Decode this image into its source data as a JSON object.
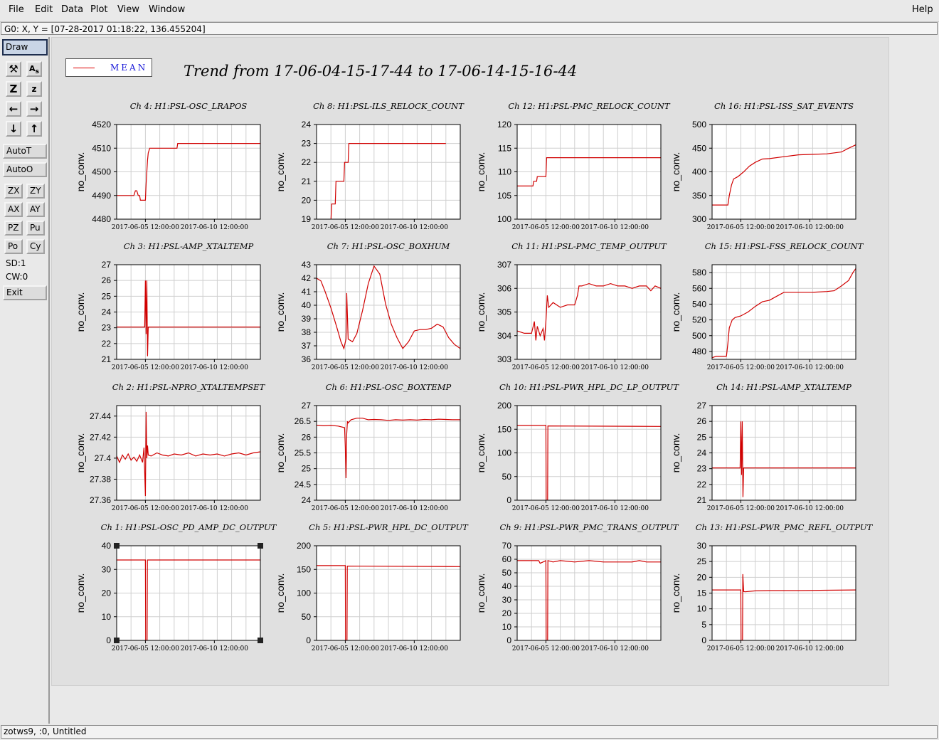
{
  "menu": {
    "file": "File",
    "edit": "Edit",
    "data": "Data",
    "plot": "Plot",
    "view": "View",
    "window": "Window",
    "help": "Help"
  },
  "coord_readout": "G0: X, Y = [07-28-2017 01:18:22, 136.455204]",
  "toolbar": {
    "draw": "Draw",
    "autot": "AutoT",
    "autoo": "AutoO",
    "zx": "ZX",
    "zy": "ZY",
    "ax": "AX",
    "ay": "AY",
    "pz": "PZ",
    "pu": "Pu",
    "po": "Po",
    "cy": "Cy",
    "sd": "SD:1",
    "cw": "CW:0",
    "exit": "Exit",
    "icons": [
      "wrench-icon",
      "text-size-icon",
      "zoom-z-icon",
      "z-icon",
      "arrow-left-icon",
      "arrow-right-icon",
      "arrow-down-icon",
      "arrow-up-icon"
    ]
  },
  "legend": {
    "label": "MEAN",
    "color": "#d00000"
  },
  "main_title": "Trend from 17-06-04-15-17-44 to 17-06-14-15-16-44",
  "status": "zotws9, :0, Untitled",
  "chart_data": [
    {
      "id": "c4",
      "type": "line",
      "title": "Ch 4: H1:PSL-OSC_LRAPOS",
      "ylabel": "no_conv.",
      "ylim": [
        4480,
        4520
      ],
      "yticks": [
        "4480",
        "4490",
        "4500",
        "4510",
        "4520"
      ],
      "xlim": [
        0,
        10
      ],
      "xticks": [
        {
          "v": 2,
          "l": "2017-06-05 12:00:00"
        },
        {
          "v": 6.8,
          "l": "2017-06-10 12:00:00"
        }
      ],
      "x": [
        0,
        1.2,
        1.3,
        1.4,
        1.5,
        1.6,
        1.65,
        2.0,
        2.05,
        2.1,
        2.15,
        2.2,
        2.3,
        4.2,
        4.25,
        10
      ],
      "y": [
        4490,
        4490,
        4492,
        4492,
        4490,
        4490,
        4488,
        4488,
        4495,
        4500,
        4505,
        4508,
        4510,
        4510,
        4512,
        4512
      ]
    },
    {
      "id": "c8",
      "type": "line",
      "title": "Ch 8: H1:PSL-ILS_RELOCK_COUNT",
      "ylabel": "no_conv.",
      "ylim": [
        19,
        24
      ],
      "yticks": [
        "19",
        "20",
        "21",
        "22",
        "23",
        "24"
      ],
      "xlim": [
        0,
        10
      ],
      "xticks": [
        {
          "v": 2,
          "l": "2017-06-05 12:00:00"
        },
        {
          "v": 6.8,
          "l": "2017-06-10 12:00:00"
        }
      ],
      "x": [
        1.0,
        1.05,
        1.3,
        1.35,
        1.9,
        1.95,
        2.2,
        2.25,
        9.0
      ],
      "y": [
        18.9,
        19.8,
        19.8,
        21,
        21,
        22,
        22,
        23,
        23
      ]
    },
    {
      "id": "c12",
      "type": "line",
      "title": "Ch 12: H1:PSL-PMC_RELOCK_COUNT",
      "ylabel": "no_conv.",
      "ylim": [
        100,
        120
      ],
      "yticks": [
        "100",
        "105",
        "110",
        "115",
        "120"
      ],
      "xlim": [
        0,
        10
      ],
      "xticks": [
        {
          "v": 2,
          "l": "2017-06-05 12:00:00"
        },
        {
          "v": 6.8,
          "l": "2017-06-10 12:00:00"
        }
      ],
      "x": [
        0,
        1.1,
        1.15,
        1.35,
        1.4,
        2.0,
        2.05,
        10
      ],
      "y": [
        107,
        107,
        108,
        108,
        109,
        109,
        113,
        113
      ]
    },
    {
      "id": "c16",
      "type": "line",
      "title": "Ch 16: H1:PSL-ISS_SAT_EVENTS",
      "ylabel": "no_conv.",
      "ylim": [
        300,
        500
      ],
      "yticks": [
        "300",
        "350",
        "400",
        "450",
        "500"
      ],
      "xlim": [
        0,
        10
      ],
      "xticks": [
        {
          "v": 2,
          "l": "2017-06-05 12:00:00"
        },
        {
          "v": 6.8,
          "l": "2017-06-10 12:00:00"
        }
      ],
      "x": [
        0,
        1.1,
        1.2,
        1.35,
        1.5,
        1.8,
        2.2,
        2.6,
        3.0,
        3.5,
        4.0,
        5.0,
        6.0,
        7.0,
        8.0,
        9.0,
        9.5,
        10
      ],
      "y": [
        330,
        330,
        350,
        372,
        385,
        390,
        400,
        412,
        420,
        427,
        428,
        432,
        436,
        437,
        438,
        442,
        450,
        457
      ]
    },
    {
      "id": "c3",
      "type": "line",
      "title": "Ch 3: H1:PSL-AMP_XTALTEMP",
      "ylabel": "no_conv.",
      "ylim": [
        21,
        27
      ],
      "yticks": [
        "21",
        "22",
        "23",
        "24",
        "25",
        "26",
        "27"
      ],
      "xlim": [
        0,
        10
      ],
      "xticks": [
        {
          "v": 2,
          "l": "2017-06-05 12:00:00"
        },
        {
          "v": 6.8,
          "l": "2017-06-10 12:00:00"
        }
      ],
      "x": [
        0,
        1.95,
        2.0,
        2.05,
        2.1,
        2.15,
        2.2,
        10
      ],
      "y": [
        23.05,
        23.05,
        26,
        22.6,
        26,
        21.2,
        23.05,
        23.05
      ]
    },
    {
      "id": "c7",
      "type": "line",
      "title": "Ch 7: H1:PSL-OSC_BOXHUM",
      "ylabel": "no_conv.",
      "ylim": [
        36,
        43
      ],
      "yticks": [
        "36",
        "37",
        "38",
        "39",
        "40",
        "41",
        "42",
        "43"
      ],
      "xlim": [
        0,
        10
      ],
      "xticks": [
        {
          "v": 2,
          "l": "2017-06-05 12:00:00"
        },
        {
          "v": 6.8,
          "l": "2017-06-10 12:00:00"
        }
      ],
      "x": [
        0,
        0.3,
        0.6,
        1.0,
        1.4,
        1.7,
        1.9,
        2.05,
        2.1,
        2.2,
        2.5,
        2.8,
        3.2,
        3.6,
        4.0,
        4.4,
        4.8,
        5.2,
        5.6,
        6.0,
        6.4,
        6.8,
        7.2,
        7.6,
        8.0,
        8.4,
        8.8,
        9.2,
        9.6,
        10
      ],
      "y": [
        42,
        41.8,
        41,
        39.8,
        38.4,
        37.3,
        36.8,
        37.5,
        40.9,
        37.5,
        37.3,
        37.9,
        39.6,
        41.6,
        42.9,
        42.3,
        40.1,
        38.6,
        37.6,
        36.8,
        37.3,
        38.1,
        38.2,
        38.2,
        38.3,
        38.6,
        38.4,
        37.6,
        37.1,
        36.8
      ]
    },
    {
      "id": "c11",
      "type": "line",
      "title": "Ch 11: H1:PSL-PMC_TEMP_OUTPUT",
      "ylabel": "no_conv.",
      "ylim": [
        303,
        307
      ],
      "yticks": [
        "303",
        "304",
        "305",
        "306",
        "307"
      ],
      "xlim": [
        0,
        10
      ],
      "xticks": [
        {
          "v": 2,
          "l": "2017-06-05 12:00:00"
        },
        {
          "v": 6.8,
          "l": "2017-06-10 12:00:00"
        }
      ],
      "x": [
        0,
        0.5,
        1.0,
        1.2,
        1.3,
        1.4,
        1.6,
        1.8,
        1.9,
        2.0,
        2.1,
        2.2,
        2.5,
        3.0,
        3.5,
        4.0,
        4.2,
        4.3,
        4.5,
        5.0,
        5.5,
        6.0,
        6.5,
        7.0,
        7.5,
        8.0,
        8.5,
        9.0,
        9.3,
        9.6,
        10
      ],
      "y": [
        304.2,
        304.1,
        304.1,
        304.6,
        303.8,
        304.4,
        304.0,
        304.3,
        303.8,
        304.6,
        305.7,
        305.2,
        305.4,
        305.2,
        305.3,
        305.3,
        305.7,
        306.1,
        306.1,
        306.2,
        306.1,
        306.1,
        306.2,
        306.1,
        306.1,
        306.0,
        306.1,
        306.1,
        305.9,
        306.1,
        306.0
      ]
    },
    {
      "id": "c15",
      "type": "line",
      "title": "Ch 15: H1:PSL-FSS_RELOCK_COUNT",
      "ylabel": "no_conv.",
      "ylim": [
        470,
        590
      ],
      "yticks": [
        "480",
        "500",
        "520",
        "540",
        "560",
        "580"
      ],
      "xlim": [
        0,
        10
      ],
      "xticks": [
        {
          "v": 2,
          "l": "2017-06-05 12:00:00"
        },
        {
          "v": 6.8,
          "l": "2017-06-10 12:00:00"
        }
      ],
      "x": [
        0,
        0.3,
        1.0,
        1.1,
        1.2,
        1.4,
        1.6,
        2.0,
        2.5,
        3.0,
        3.5,
        4.0,
        4.5,
        5.0,
        6.0,
        7.0,
        8.0,
        8.5,
        9.0,
        9.5,
        9.8,
        10
      ],
      "y": [
        472,
        474,
        474,
        490,
        510,
        520,
        523,
        525,
        530,
        537,
        543,
        545,
        550,
        555,
        555,
        555,
        556,
        557,
        563,
        570,
        580,
        585
      ]
    },
    {
      "id": "c2",
      "type": "line",
      "title": "Ch 2: H1:PSL-NPRO_XTALTEMPSET",
      "ylabel": "no_conv.",
      "ylim": [
        27.36,
        27.45
      ],
      "yticks": [
        "27.36",
        "27.38",
        "27.4",
        "27.42",
        "27.44"
      ],
      "xlim": [
        0,
        10
      ],
      "xticks": [
        {
          "v": 2,
          "l": "2017-06-05 12:00:00"
        },
        {
          "v": 6.8,
          "l": "2017-06-10 12:00:00"
        }
      ],
      "x": [
        0,
        0.2,
        0.4,
        0.6,
        0.8,
        1.0,
        1.2,
        1.4,
        1.6,
        1.8,
        1.9,
        2.0,
        2.05,
        2.1,
        2.15,
        2.2,
        2.4,
        2.8,
        3.2,
        3.6,
        4.0,
        4.5,
        5.0,
        5.5,
        6.0,
        6.5,
        7.0,
        7.5,
        8.0,
        8.5,
        9.0,
        9.5,
        10
      ],
      "y": [
        27.402,
        27.396,
        27.403,
        27.399,
        27.404,
        27.398,
        27.401,
        27.397,
        27.403,
        27.396,
        27.41,
        27.364,
        27.444,
        27.4,
        27.412,
        27.403,
        27.402,
        27.405,
        27.403,
        27.402,
        27.404,
        27.403,
        27.405,
        27.402,
        27.404,
        27.403,
        27.404,
        27.402,
        27.404,
        27.405,
        27.403,
        27.405,
        27.406
      ]
    },
    {
      "id": "c6",
      "type": "line",
      "title": "Ch 6: H1:PSL-OSC_BOXTEMP",
      "ylabel": "no_conv.",
      "ylim": [
        24,
        27
      ],
      "yticks": [
        "24",
        "24.5",
        "25",
        "25.5",
        "26",
        "26.5",
        "27"
      ],
      "xlim": [
        0,
        10
      ],
      "xticks": [
        {
          "v": 2,
          "l": "2017-06-05 12:00:00"
        },
        {
          "v": 6.8,
          "l": "2017-06-10 12:00:00"
        }
      ],
      "x": [
        0,
        0.5,
        1.0,
        1.5,
        1.95,
        2.0,
        2.05,
        2.1,
        2.15,
        2.2,
        2.4,
        2.8,
        3.2,
        3.6,
        4.0,
        4.5,
        5.0,
        5.5,
        6.0,
        6.5,
        7.0,
        7.5,
        8.0,
        8.5,
        9.0,
        9.5,
        10
      ],
      "y": [
        26.38,
        26.36,
        26.37,
        26.35,
        26.3,
        25.7,
        24.7,
        26.1,
        26.5,
        26.45,
        26.55,
        26.6,
        26.6,
        26.55,
        26.56,
        26.55,
        26.53,
        26.55,
        26.54,
        26.55,
        26.54,
        26.56,
        26.55,
        26.57,
        26.56,
        26.55,
        26.55
      ]
    },
    {
      "id": "c10",
      "type": "line",
      "title": "Ch 10: H1:PSL-PWR_HPL_DC_LP_OUTPUT",
      "ylabel": "no_conv.",
      "ylim": [
        0,
        200
      ],
      "yticks": [
        "0",
        "50",
        "100",
        "150",
        "200"
      ],
      "xlim": [
        0,
        10
      ],
      "xticks": [
        {
          "v": 2,
          "l": "2017-06-05 12:00:00"
        },
        {
          "v": 6.8,
          "l": "2017-06-10 12:00:00"
        }
      ],
      "x": [
        0,
        2.0,
        2.02,
        2.12,
        2.14,
        10
      ],
      "y": [
        158,
        158,
        0,
        0,
        157,
        156
      ]
    },
    {
      "id": "c14",
      "type": "line",
      "title": "Ch 14: H1:PSL-AMP_XTALTEMP",
      "ylabel": "no_conv.",
      "ylim": [
        21,
        27
      ],
      "yticks": [
        "21",
        "22",
        "23",
        "24",
        "25",
        "26",
        "27"
      ],
      "xlim": [
        0,
        10
      ],
      "xticks": [
        {
          "v": 2,
          "l": "2017-06-05 12:00:00"
        },
        {
          "v": 6.8,
          "l": "2017-06-10 12:00:00"
        }
      ],
      "x": [
        0,
        1.95,
        2.0,
        2.05,
        2.1,
        2.15,
        2.2,
        10
      ],
      "y": [
        23.05,
        23.05,
        26,
        22.6,
        26,
        21.2,
        23.05,
        23.05
      ]
    },
    {
      "id": "c1",
      "type": "line",
      "title": "Ch 1: H1:PSL-OSC_PD_AMP_DC_OUTPUT",
      "ylabel": "no_conv.",
      "ylim": [
        0,
        40
      ],
      "yticks": [
        "0",
        "10",
        "20",
        "30",
        "40"
      ],
      "xlim": [
        0,
        10
      ],
      "xticks": [
        {
          "v": 2,
          "l": "2017-06-05 12:00:00"
        },
        {
          "v": 6.8,
          "l": "2017-06-10 12:00:00"
        }
      ],
      "x": [
        0,
        2.0,
        2.02,
        2.12,
        2.14,
        10
      ],
      "y": [
        34,
        34,
        0,
        0,
        34,
        34
      ]
    },
    {
      "id": "c5",
      "type": "line",
      "title": "Ch 5: H1:PSL-PWR_HPL_DC_OUTPUT",
      "ylabel": "no_conv.",
      "ylim": [
        0,
        200
      ],
      "yticks": [
        "0",
        "50",
        "100",
        "150",
        "200"
      ],
      "xlim": [
        0,
        10
      ],
      "xticks": [
        {
          "v": 2,
          "l": "2017-06-05 12:00:00"
        },
        {
          "v": 6.8,
          "l": "2017-06-10 12:00:00"
        }
      ],
      "x": [
        0,
        2.0,
        2.02,
        2.12,
        2.14,
        10
      ],
      "y": [
        158,
        158,
        0,
        0,
        157,
        156
      ]
    },
    {
      "id": "c9",
      "type": "line",
      "title": "Ch 9: H1:PSL-PWR_PMC_TRANS_OUTPUT",
      "ylabel": "no_conv.",
      "ylim": [
        0,
        70
      ],
      "yticks": [
        "0",
        "10",
        "20",
        "30",
        "40",
        "50",
        "60",
        "70"
      ],
      "xlim": [
        0,
        10
      ],
      "xticks": [
        {
          "v": 2,
          "l": "2017-06-05 12:00:00"
        },
        {
          "v": 6.8,
          "l": "2017-06-10 12:00:00"
        }
      ],
      "x": [
        0,
        1.5,
        1.6,
        2.0,
        2.02,
        2.12,
        2.14,
        2.5,
        3.0,
        4.0,
        5.0,
        6.0,
        7.0,
        8.0,
        8.5,
        9.0,
        10
      ],
      "y": [
        59,
        59,
        57,
        59,
        0,
        0,
        59,
        58,
        59,
        58,
        59,
        58,
        58,
        58,
        59,
        58,
        58
      ]
    },
    {
      "id": "c13",
      "type": "line",
      "title": "Ch 13: H1:PSL-PWR_PMC_REFL_OUTPUT",
      "ylabel": "no_conv.",
      "ylim": [
        0,
        30
      ],
      "yticks": [
        "0",
        "5",
        "10",
        "15",
        "20",
        "25",
        "30"
      ],
      "xlim": [
        0,
        10
      ],
      "xticks": [
        {
          "v": 2,
          "l": "2017-06-05 12:00:00"
        },
        {
          "v": 6.8,
          "l": "2017-06-10 12:00:00"
        }
      ],
      "x": [
        0,
        2.0,
        2.02,
        2.12,
        2.14,
        2.2,
        2.3,
        3.0,
        4.0,
        6.0,
        8.0,
        10
      ],
      "y": [
        16,
        16,
        0,
        0,
        21,
        15.5,
        15.4,
        15.7,
        15.8,
        15.8,
        15.9,
        16
      ]
    }
  ]
}
